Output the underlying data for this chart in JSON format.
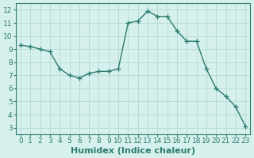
{
  "x": [
    0,
    1,
    2,
    3,
    4,
    5,
    6,
    7,
    8,
    9,
    10,
    11,
    12,
    13,
    14,
    15,
    16,
    17,
    18,
    19,
    20,
    21,
    22,
    23
  ],
  "y": [
    9.3,
    9.2,
    9.0,
    8.8,
    7.5,
    7.0,
    6.8,
    7.15,
    7.3,
    7.3,
    7.5,
    11.0,
    11.15,
    11.9,
    11.5,
    11.5,
    10.4,
    9.6,
    9.6,
    7.5,
    6.0,
    5.4,
    4.6,
    3.1
  ],
  "line_color": "#2e7d6e",
  "marker": "+",
  "marker_size": 4,
  "marker_linewidth": 1.0,
  "linewidth": 1.0,
  "bg_color": "#d6f0ed",
  "grid_color": "#b8ddd8",
  "xlabel": "Humidex (Indice chaleur)",
  "xlim": [
    -0.5,
    23.5
  ],
  "ylim": [
    2.5,
    12.5
  ],
  "yticks": [
    3,
    4,
    5,
    6,
    7,
    8,
    9,
    10,
    11,
    12
  ],
  "xtick_labels": [
    "0",
    "1",
    "2",
    "3",
    "4",
    "5",
    "6",
    "7",
    "8",
    "9",
    "10",
    "11",
    "12",
    "13",
    "14",
    "15",
    "16",
    "17",
    "18",
    "19",
    "20",
    "21",
    "22",
    "23"
  ],
  "tick_fontsize": 6.5,
  "xlabel_fontsize": 8,
  "tick_color": "#2e7d6e",
  "axis_color": "#2e7d6e",
  "spine_linewidth": 0.8
}
